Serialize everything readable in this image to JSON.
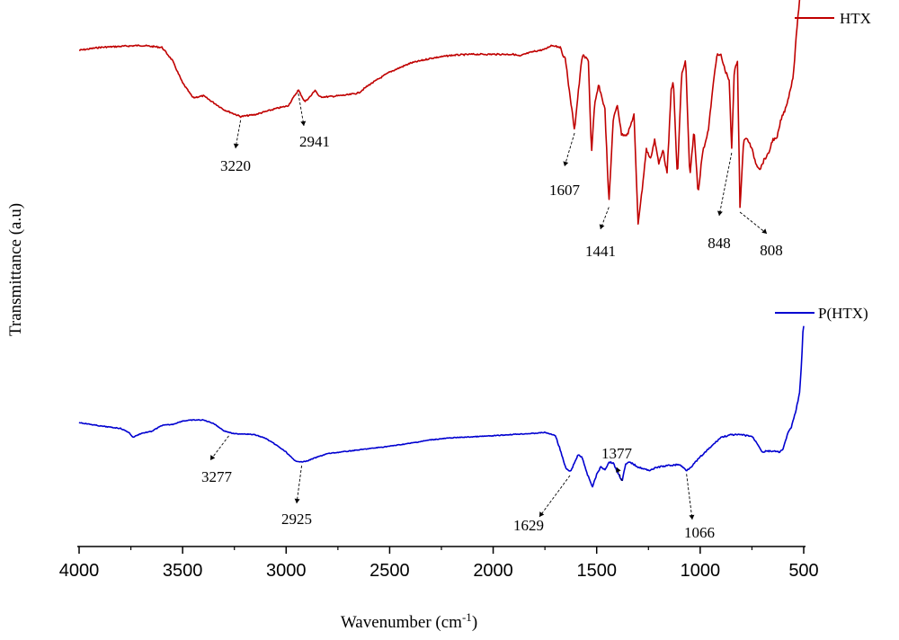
{
  "chart_data": {
    "type": "line",
    "xlabel": "Wavenumber (cm",
    "xlabel_sup": "-1",
    "xlabel_end": ")",
    "ylabel": "Transmittance (a.u)",
    "xlim": [
      4000,
      500
    ],
    "x_reversed": true,
    "x_ticks": [
      "4000",
      "3500",
      "3000",
      "2500",
      "2000",
      "1500",
      "1000",
      "500"
    ],
    "grid": false,
    "legend": "per-series, top-right of each trace",
    "series": [
      {
        "name": "HTX",
        "color": "#c00000",
        "points": [
          [
            4000,
            0.1
          ],
          [
            3900,
            0.07
          ],
          [
            3800,
            0.06
          ],
          [
            3700,
            0.05
          ],
          [
            3600,
            0.07
          ],
          [
            3550,
            0.2
          ],
          [
            3500,
            0.43
          ],
          [
            3450,
            0.58
          ],
          [
            3400,
            0.56
          ],
          [
            3350,
            0.63
          ],
          [
            3300,
            0.7
          ],
          [
            3220,
            0.77
          ],
          [
            3150,
            0.75
          ],
          [
            3050,
            0.69
          ],
          [
            2990,
            0.66
          ],
          [
            2941,
            0.5
          ],
          [
            2910,
            0.62
          ],
          [
            2880,
            0.56
          ],
          [
            2860,
            0.5
          ],
          [
            2840,
            0.57
          ],
          [
            2800,
            0.57
          ],
          [
            2700,
            0.55
          ],
          [
            2650,
            0.53
          ],
          [
            2600,
            0.45
          ],
          [
            2500,
            0.32
          ],
          [
            2400,
            0.23
          ],
          [
            2300,
            0.18
          ],
          [
            2200,
            0.15
          ],
          [
            2100,
            0.14
          ],
          [
            2000,
            0.14
          ],
          [
            1900,
            0.14
          ],
          [
            1870,
            0.16
          ],
          [
            1850,
            0.14
          ],
          [
            1800,
            0.11
          ],
          [
            1750,
            0.09
          ],
          [
            1720,
            0.05
          ],
          [
            1680,
            0.06
          ],
          [
            1650,
            0.2
          ],
          [
            1630,
            0.55
          ],
          [
            1607,
            0.9
          ],
          [
            1590,
            0.55
          ],
          [
            1570,
            0.15
          ],
          [
            1540,
            0.2
          ],
          [
            1525,
            1.15
          ],
          [
            1510,
            0.65
          ],
          [
            1490,
            0.45
          ],
          [
            1460,
            0.7
          ],
          [
            1441,
            1.65
          ],
          [
            1420,
            0.8
          ],
          [
            1400,
            0.65
          ],
          [
            1380,
            0.95
          ],
          [
            1350,
            0.95
          ],
          [
            1320,
            0.75
          ],
          [
            1300,
            1.85
          ],
          [
            1280,
            1.5
          ],
          [
            1260,
            1.1
          ],
          [
            1240,
            1.2
          ],
          [
            1220,
            1.0
          ],
          [
            1200,
            1.25
          ],
          [
            1180,
            1.1
          ],
          [
            1160,
            1.35
          ],
          [
            1140,
            0.5
          ],
          [
            1130,
            0.4
          ],
          [
            1110,
            1.4
          ],
          [
            1090,
            0.35
          ],
          [
            1070,
            0.2
          ],
          [
            1050,
            1.4
          ],
          [
            1030,
            0.9
          ],
          [
            1010,
            1.55
          ],
          [
            990,
            1.15
          ],
          [
            960,
            0.9
          ],
          [
            940,
            0.5
          ],
          [
            920,
            0.15
          ],
          [
            900,
            0.15
          ],
          [
            880,
            0.3
          ],
          [
            860,
            0.4
          ],
          [
            848,
            1.1
          ],
          [
            835,
            0.3
          ],
          [
            820,
            0.2
          ],
          [
            808,
            1.7
          ],
          [
            790,
            1.0
          ],
          [
            770,
            1.0
          ],
          [
            750,
            1.1
          ],
          [
            730,
            1.25
          ],
          [
            710,
            1.3
          ],
          [
            690,
            1.2
          ],
          [
            670,
            1.15
          ],
          [
            650,
            1.0
          ],
          [
            630,
            1.0
          ],
          [
            610,
            0.8
          ],
          [
            590,
            0.7
          ],
          [
            570,
            0.55
          ],
          [
            550,
            0.35
          ],
          [
            530,
            -0.2
          ],
          [
            515,
            -0.5
          ],
          [
            505,
            -0.55
          ],
          [
            500,
            -0.45
          ]
        ],
        "annotations": [
          "3220",
          "2941",
          "1607",
          "1441",
          "848",
          "808"
        ]
      },
      {
        "name": "P(HTX)",
        "color": "#0000d0",
        "points": [
          [
            4000,
            0.0
          ],
          [
            3900,
            0.07
          ],
          [
            3800,
            0.12
          ],
          [
            3760,
            0.2
          ],
          [
            3740,
            0.3
          ],
          [
            3700,
            0.22
          ],
          [
            3650,
            0.18
          ],
          [
            3600,
            0.06
          ],
          [
            3550,
            0.04
          ],
          [
            3500,
            -0.03
          ],
          [
            3450,
            -0.05
          ],
          [
            3400,
            -0.05
          ],
          [
            3350,
            0.02
          ],
          [
            3300,
            0.17
          ],
          [
            3250,
            0.23
          ],
          [
            3200,
            0.23
          ],
          [
            3150,
            0.25
          ],
          [
            3100,
            0.32
          ],
          [
            3050,
            0.45
          ],
          [
            3000,
            0.6
          ],
          [
            2960,
            0.77
          ],
          [
            2925,
            0.8
          ],
          [
            2900,
            0.78
          ],
          [
            2850,
            0.7
          ],
          [
            2800,
            0.63
          ],
          [
            2700,
            0.58
          ],
          [
            2600,
            0.53
          ],
          [
            2500,
            0.48
          ],
          [
            2400,
            0.42
          ],
          [
            2300,
            0.35
          ],
          [
            2200,
            0.31
          ],
          [
            2100,
            0.29
          ],
          [
            2000,
            0.27
          ],
          [
            1900,
            0.24
          ],
          [
            1800,
            0.22
          ],
          [
            1750,
            0.2
          ],
          [
            1720,
            0.24
          ],
          [
            1700,
            0.26
          ],
          [
            1680,
            0.5
          ],
          [
            1650,
            0.92
          ],
          [
            1629,
            1.0
          ],
          [
            1610,
            0.85
          ],
          [
            1590,
            0.65
          ],
          [
            1570,
            0.7
          ],
          [
            1550,
            1.0
          ],
          [
            1520,
            1.3
          ],
          [
            1500,
            1.05
          ],
          [
            1480,
            0.9
          ],
          [
            1460,
            0.95
          ],
          [
            1440,
            0.8
          ],
          [
            1420,
            0.82
          ],
          [
            1400,
            1.0
          ],
          [
            1377,
            1.18
          ],
          [
            1360,
            0.85
          ],
          [
            1340,
            0.8
          ],
          [
            1300,
            0.9
          ],
          [
            1250,
            0.97
          ],
          [
            1200,
            0.9
          ],
          [
            1150,
            0.87
          ],
          [
            1100,
            0.85
          ],
          [
            1066,
            0.97
          ],
          [
            1040,
            0.88
          ],
          [
            1000,
            0.7
          ],
          [
            950,
            0.5
          ],
          [
            900,
            0.3
          ],
          [
            850,
            0.25
          ],
          [
            800,
            0.25
          ],
          [
            750,
            0.28
          ],
          [
            720,
            0.45
          ],
          [
            700,
            0.6
          ],
          [
            680,
            0.58
          ],
          [
            650,
            0.58
          ],
          [
            620,
            0.6
          ],
          [
            600,
            0.55
          ],
          [
            580,
            0.25
          ],
          [
            560,
            0.1
          ],
          [
            540,
            -0.2
          ],
          [
            520,
            -0.6
          ],
          [
            510,
            -1.2
          ],
          [
            505,
            -1.8
          ],
          [
            500,
            -1.95
          ]
        ],
        "annotations": [
          "3277",
          "2925",
          "1629",
          "1377",
          "1066"
        ]
      }
    ]
  }
}
